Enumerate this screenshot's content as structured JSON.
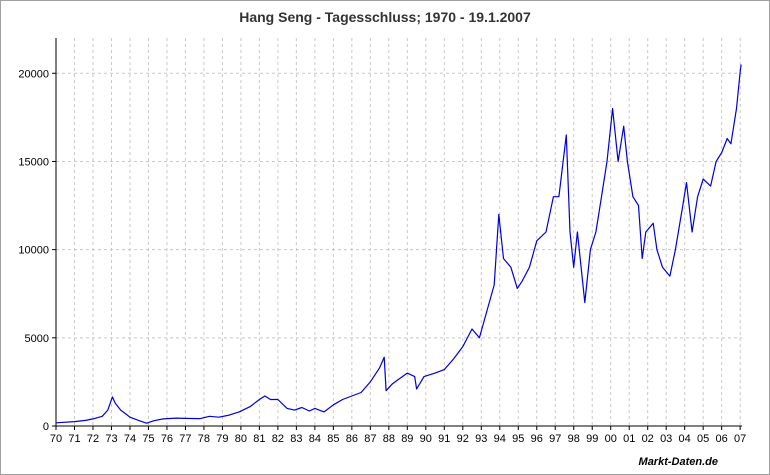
{
  "chart_data": {
    "type": "line",
    "title": "Hang Seng - Tagesschluss; 1970 - 19.1.2007",
    "xlabel": "",
    "ylabel": "",
    "xlim": [
      1970,
      2007.1
    ],
    "ylim": [
      0,
      22000
    ],
    "grid": true,
    "yticks": [
      0,
      5000,
      10000,
      15000,
      20000
    ],
    "xtick_labels": [
      "70",
      "71",
      "72",
      "73",
      "74",
      "75",
      "76",
      "77",
      "78",
      "79",
      "80",
      "81",
      "82",
      "83",
      "84",
      "85",
      "86",
      "87",
      "88",
      "89",
      "90",
      "91",
      "92",
      "93",
      "94",
      "95",
      "96",
      "97",
      "98",
      "99",
      "00",
      "01",
      "02",
      "03",
      "04",
      "05",
      "06",
      "07"
    ],
    "series": [
      {
        "color": "#0000dd",
        "points": [
          [
            1970.0,
            180
          ],
          [
            1971.0,
            250
          ],
          [
            1971.6,
            320
          ],
          [
            1972.0,
            400
          ],
          [
            1972.5,
            550
          ],
          [
            1972.8,
            900
          ],
          [
            1973.05,
            1650
          ],
          [
            1973.2,
            1300
          ],
          [
            1973.5,
            900
          ],
          [
            1974.0,
            500
          ],
          [
            1974.5,
            300
          ],
          [
            1974.9,
            160
          ],
          [
            1975.3,
            300
          ],
          [
            1975.8,
            400
          ],
          [
            1976.5,
            450
          ],
          [
            1977.0,
            430
          ],
          [
            1977.8,
            420
          ],
          [
            1978.3,
            550
          ],
          [
            1978.8,
            500
          ],
          [
            1979.3,
            600
          ],
          [
            1979.9,
            800
          ],
          [
            1980.5,
            1100
          ],
          [
            1981.0,
            1500
          ],
          [
            1981.3,
            1700
          ],
          [
            1981.6,
            1500
          ],
          [
            1982.0,
            1500
          ],
          [
            1982.5,
            1000
          ],
          [
            1982.9,
            900
          ],
          [
            1983.3,
            1050
          ],
          [
            1983.7,
            850
          ],
          [
            1984.0,
            1000
          ],
          [
            1984.5,
            800
          ],
          [
            1985.0,
            1200
          ],
          [
            1985.5,
            1500
          ],
          [
            1986.0,
            1700
          ],
          [
            1986.5,
            1900
          ],
          [
            1987.0,
            2500
          ],
          [
            1987.5,
            3300
          ],
          [
            1987.75,
            3900
          ],
          [
            1987.85,
            2000
          ],
          [
            1988.2,
            2400
          ],
          [
            1988.6,
            2700
          ],
          [
            1989.0,
            3000
          ],
          [
            1989.4,
            2800
          ],
          [
            1989.5,
            2100
          ],
          [
            1989.9,
            2800
          ],
          [
            1990.5,
            3000
          ],
          [
            1991.0,
            3200
          ],
          [
            1991.5,
            3800
          ],
          [
            1992.0,
            4500
          ],
          [
            1992.5,
            5500
          ],
          [
            1992.9,
            5000
          ],
          [
            1993.3,
            6500
          ],
          [
            1993.7,
            8000
          ],
          [
            1993.95,
            12000
          ],
          [
            1994.2,
            9500
          ],
          [
            1994.6,
            9000
          ],
          [
            1994.95,
            7800
          ],
          [
            1995.2,
            8200
          ],
          [
            1995.6,
            9000
          ],
          [
            1996.0,
            10500
          ],
          [
            1996.5,
            11000
          ],
          [
            1996.9,
            13000
          ],
          [
            1997.2,
            13000
          ],
          [
            1997.6,
            16500
          ],
          [
            1997.8,
            11000
          ],
          [
            1998.0,
            9000
          ],
          [
            1998.2,
            11000
          ],
          [
            1998.6,
            7000
          ],
          [
            1998.9,
            10000
          ],
          [
            1999.2,
            11000
          ],
          [
            1999.5,
            13000
          ],
          [
            1999.8,
            15000
          ],
          [
            2000.1,
            18000
          ],
          [
            2000.4,
            15000
          ],
          [
            2000.7,
            17000
          ],
          [
            2000.9,
            15000
          ],
          [
            2001.2,
            13000
          ],
          [
            2001.5,
            12500
          ],
          [
            2001.7,
            9500
          ],
          [
            2001.9,
            11000
          ],
          [
            2002.3,
            11500
          ],
          [
            2002.5,
            10000
          ],
          [
            2002.8,
            9000
          ],
          [
            2003.2,
            8500
          ],
          [
            2003.5,
            10000
          ],
          [
            2003.9,
            12500
          ],
          [
            2004.1,
            13800
          ],
          [
            2004.4,
            11000
          ],
          [
            2004.7,
            13000
          ],
          [
            2005.0,
            14000
          ],
          [
            2005.4,
            13600
          ],
          [
            2005.7,
            15000
          ],
          [
            2006.0,
            15500
          ],
          [
            2006.3,
            16300
          ],
          [
            2006.5,
            16000
          ],
          [
            2006.8,
            18000
          ],
          [
            2007.0,
            20100
          ],
          [
            2007.05,
            20500
          ]
        ]
      }
    ]
  },
  "footer": {
    "source": "Markt-Daten.de"
  }
}
